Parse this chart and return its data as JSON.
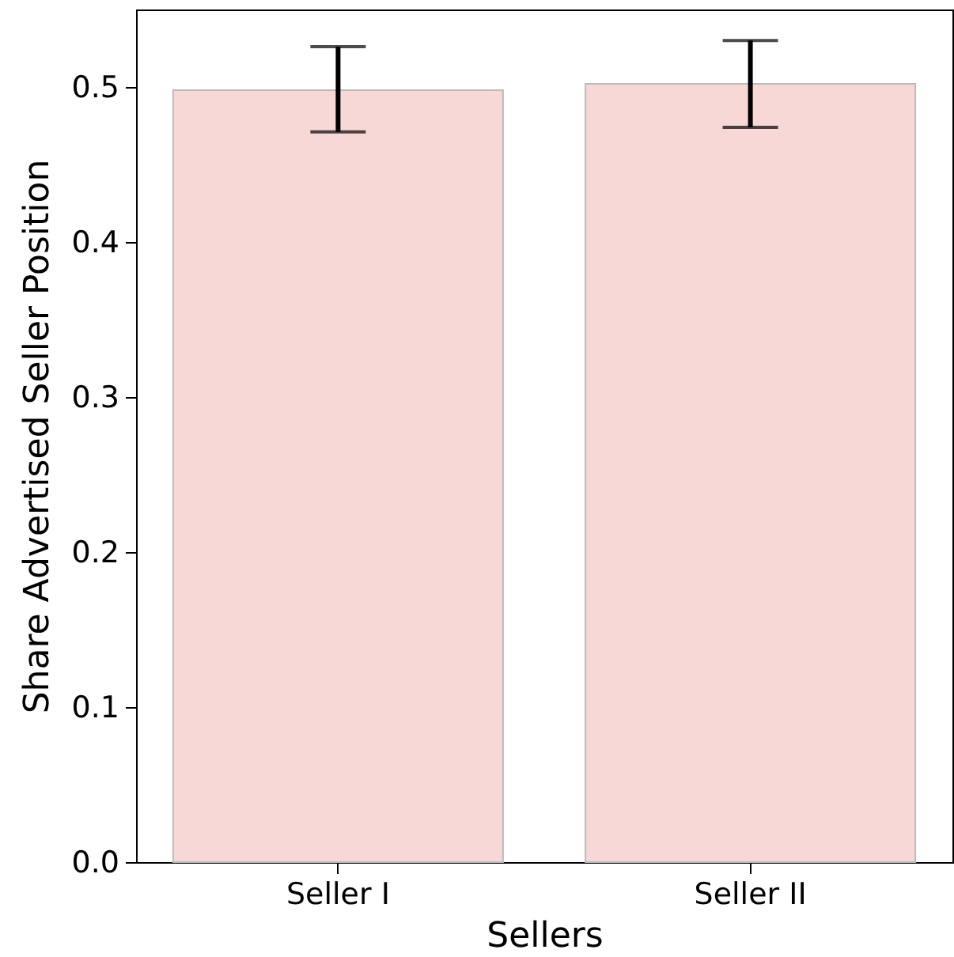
{
  "chart_data": {
    "type": "bar",
    "xlabel": "Sellers",
    "ylabel": "Share Advertised Seller Position",
    "categories": [
      "Seller I",
      "Seller II"
    ],
    "values": [
      0.498,
      0.502
    ],
    "errors": [
      [
        0.471,
        0.526
      ],
      [
        0.474,
        0.53
      ]
    ],
    "color": "#f8d7d7",
    "ylim": [
      0,
      0.55
    ],
    "yticks": [
      {
        "value": 0,
        "label": "0.0"
      },
      0.1,
      0.2,
      0.3,
      0.4,
      0.5
    ]
  }
}
